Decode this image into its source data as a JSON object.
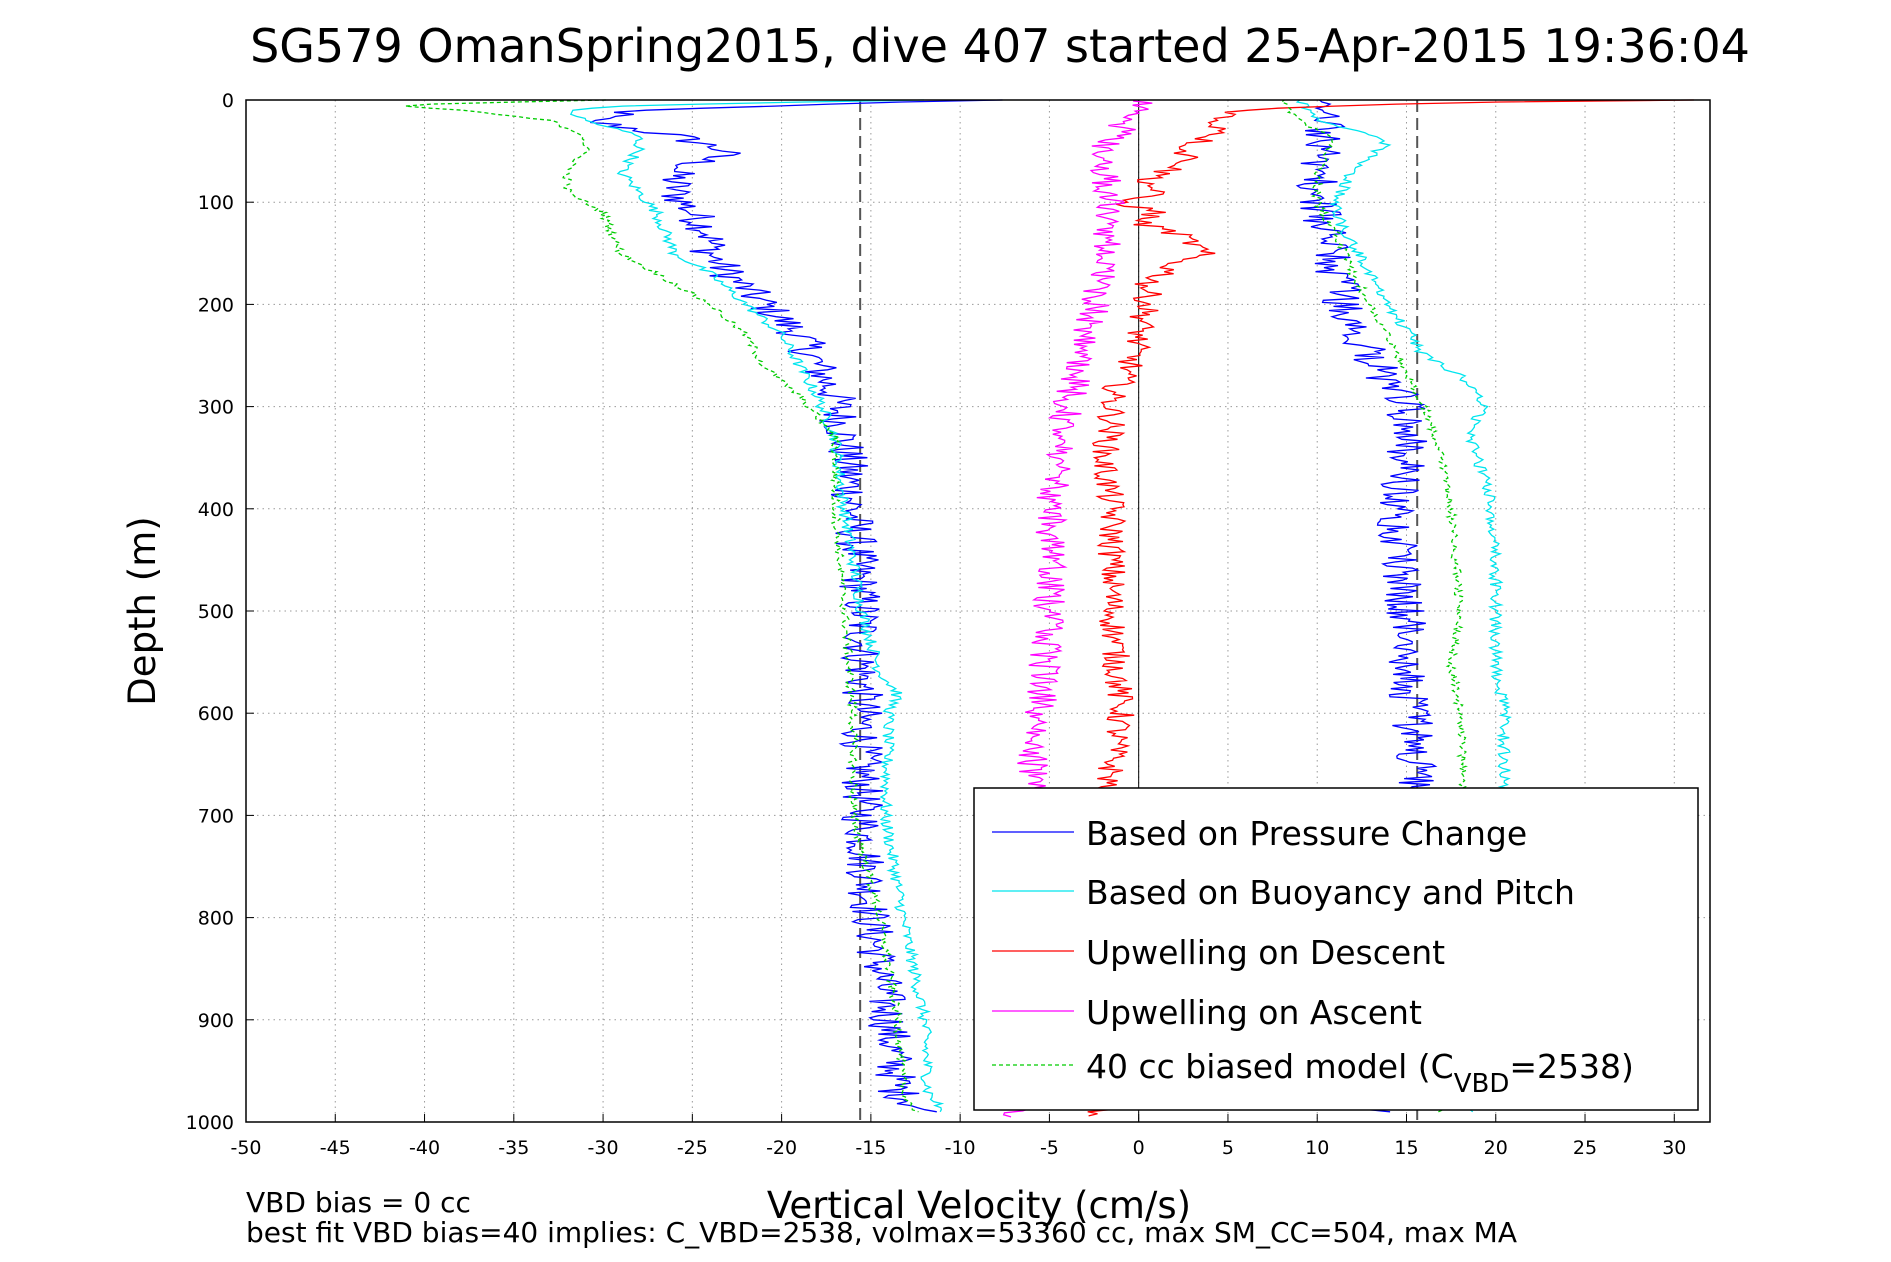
{
  "chart_data": {
    "type": "line",
    "title": "SG579 OmanSpring2015, dive 407 started 25-Apr-2015 19:36:04",
    "xlabel": "Vertical Velocity (cm/s)",
    "ylabel": "Depth (m)",
    "xlim": [
      -50,
      32
    ],
    "ylim": [
      0,
      1000
    ],
    "y_reversed": true,
    "grid": true,
    "legend_position": "bottom-right",
    "x_ticks": [
      "-50",
      "-45",
      "-40",
      "-35",
      "-30",
      "-25",
      "-20",
      "-15",
      "-10",
      "-5",
      "0",
      "5",
      "10",
      "15",
      "20",
      "25",
      "30"
    ],
    "y_ticks": [
      "0",
      "100",
      "200",
      "300",
      "400",
      "500",
      "600",
      "700",
      "800",
      "900",
      "1000"
    ],
    "reference_lines": {
      "dashed_x": [
        -15.6,
        15.6
      ],
      "solid_x": [
        0
      ]
    },
    "series": [
      {
        "name": "Based on Pressure Change",
        "color": "#0000ff",
        "noise": 1.2,
        "descent": {
          "depth": [
            0,
            5,
            10,
            20,
            35,
            50,
            70,
            90,
            110,
            130,
            150,
            170,
            200,
            230,
            260,
            290,
            330,
            400,
            500,
            600,
            700,
            800,
            900,
            970,
            990
          ],
          "velocity": [
            -8,
            -20,
            -28,
            -31,
            -26,
            -23,
            -26,
            -26,
            -25,
            -24,
            -24,
            -23,
            -21,
            -19,
            -18,
            -17,
            -16.5,
            -16,
            -15.5,
            -15.5,
            -15.5,
            -15,
            -14,
            -13.5,
            -12
          ]
        },
        "ascent": {
          "depth": [
            990,
            970,
            900,
            800,
            700,
            650,
            600,
            500,
            400,
            350,
            300,
            250,
            200,
            170,
            130,
            100,
            70,
            40,
            20,
            0
          ],
          "velocity": [
            14,
            15,
            15.2,
            15.4,
            15.5,
            15.5,
            15.3,
            15,
            14.5,
            15,
            15,
            13,
            11.5,
            11,
            10.5,
            10,
            10,
            10.5,
            10.5,
            10
          ]
        }
      },
      {
        "name": "Based on Buoyancy and Pitch",
        "color": "#00e5ee",
        "noise": 0.35,
        "descent": {
          "depth": [
            0,
            5,
            10,
            20,
            35,
            50,
            70,
            90,
            110,
            130,
            150,
            170,
            200,
            230,
            260,
            290,
            330,
            400,
            500,
            560,
            580,
            600,
            700,
            800,
            900,
            970,
            990
          ],
          "velocity": [
            -12,
            -28,
            -32,
            -31,
            -28,
            -28,
            -29,
            -28,
            -27,
            -26.5,
            -26,
            -24,
            -22,
            -20,
            -19,
            -18,
            -17,
            -16.5,
            -15.5,
            -14.5,
            -13.5,
            -14,
            -14.2,
            -13.2,
            -12,
            -11.8,
            -11
          ]
        },
        "ascent": {
          "depth": [
            990,
            970,
            900,
            800,
            700,
            670,
            600,
            560,
            500,
            450,
            400,
            350,
            330,
            310,
            300,
            270,
            250,
            200,
            170,
            130,
            100,
            70,
            40,
            20,
            0
          ],
          "velocity": [
            18.5,
            20,
            20.5,
            20.7,
            20.6,
            20.5,
            20.5,
            20,
            20,
            20,
            19.8,
            19,
            18.5,
            19,
            19.5,
            18,
            16,
            14,
            13,
            11.5,
            11,
            12,
            14,
            10,
            9
          ]
        }
      },
      {
        "name": "Upwelling on Descent",
        "color": "#ff0000",
        "noise": 0.8,
        "descent": {
          "depth": [
            0,
            2,
            5,
            10,
            20,
            30,
            40,
            50,
            60,
            70,
            80,
            90,
            100,
            110,
            120,
            130,
            140,
            150,
            160,
            170,
            180,
            200,
            230,
            260,
            290,
            320,
            350,
            400,
            500,
            600,
            700,
            800,
            900,
            980,
            995
          ],
          "velocity": [
            31,
            20,
            12,
            6,
            4,
            5,
            3.5,
            2.5,
            3,
            1.5,
            0.5,
            1,
            -1,
            1,
            0,
            2,
            3,
            3.5,
            2,
            1.5,
            0.5,
            0.5,
            0,
            -0.5,
            -1.5,
            -1.5,
            -2,
            -1.5,
            -1.5,
            -1,
            -2,
            -2,
            -2,
            -2,
            -2.5
          ]
        }
      },
      {
        "name": "Upwelling on Ascent",
        "color": "#ff00ff",
        "noise": 0.9,
        "ascent": {
          "depth": [
            995,
            980,
            900,
            800,
            700,
            650,
            600,
            500,
            400,
            350,
            300,
            250,
            200,
            150,
            100,
            70,
            50,
            30,
            0
          ],
          "velocity": [
            -8,
            -5.5,
            -5.5,
            -5.5,
            -5.5,
            -6,
            -5.5,
            -5,
            -5,
            -4.5,
            -4,
            -3,
            -2.5,
            -2,
            -1.5,
            -2,
            -2,
            -1,
            0
          ]
        }
      },
      {
        "name": "40 cc biased model (C",
        "name_sub": "VBD",
        "name_suffix": "=2538)",
        "color": "#00cc00",
        "dashed": true,
        "noise": 0.25,
        "descent": {
          "depth": [
            0,
            5,
            10,
            20,
            35,
            50,
            70,
            90,
            110,
            130,
            150,
            170,
            200,
            230,
            260,
            290,
            330,
            400,
            500,
            600,
            700,
            800,
            900,
            970,
            990
          ],
          "velocity": [
            -30,
            -42,
            -38,
            -33,
            -31,
            -31,
            -32,
            -32,
            -30,
            -29.5,
            -29,
            -27,
            -24,
            -22,
            -21,
            -19,
            -17,
            -17,
            -16.5,
            -16,
            -16,
            -14.5,
            -13.5,
            -13.2,
            -12.5
          ]
        },
        "ascent": {
          "depth": [
            990,
            970,
            900,
            800,
            700,
            600,
            550,
            500,
            400,
            350,
            300,
            250,
            200,
            170,
            130,
            100,
            70,
            40,
            20,
            0
          ],
          "velocity": [
            17,
            17.5,
            18,
            18.2,
            18.3,
            18,
            17.5,
            18,
            17.5,
            17,
            16,
            14.5,
            13,
            12,
            11,
            10,
            10,
            11,
            9,
            8
          ]
        }
      }
    ]
  },
  "footer": {
    "line1": "VBD bias = 0 cc",
    "line2": "best fit VBD bias=40 implies: C_VBD=2538, volmax=53360 cc, max SM_CC=504, max MA"
  }
}
